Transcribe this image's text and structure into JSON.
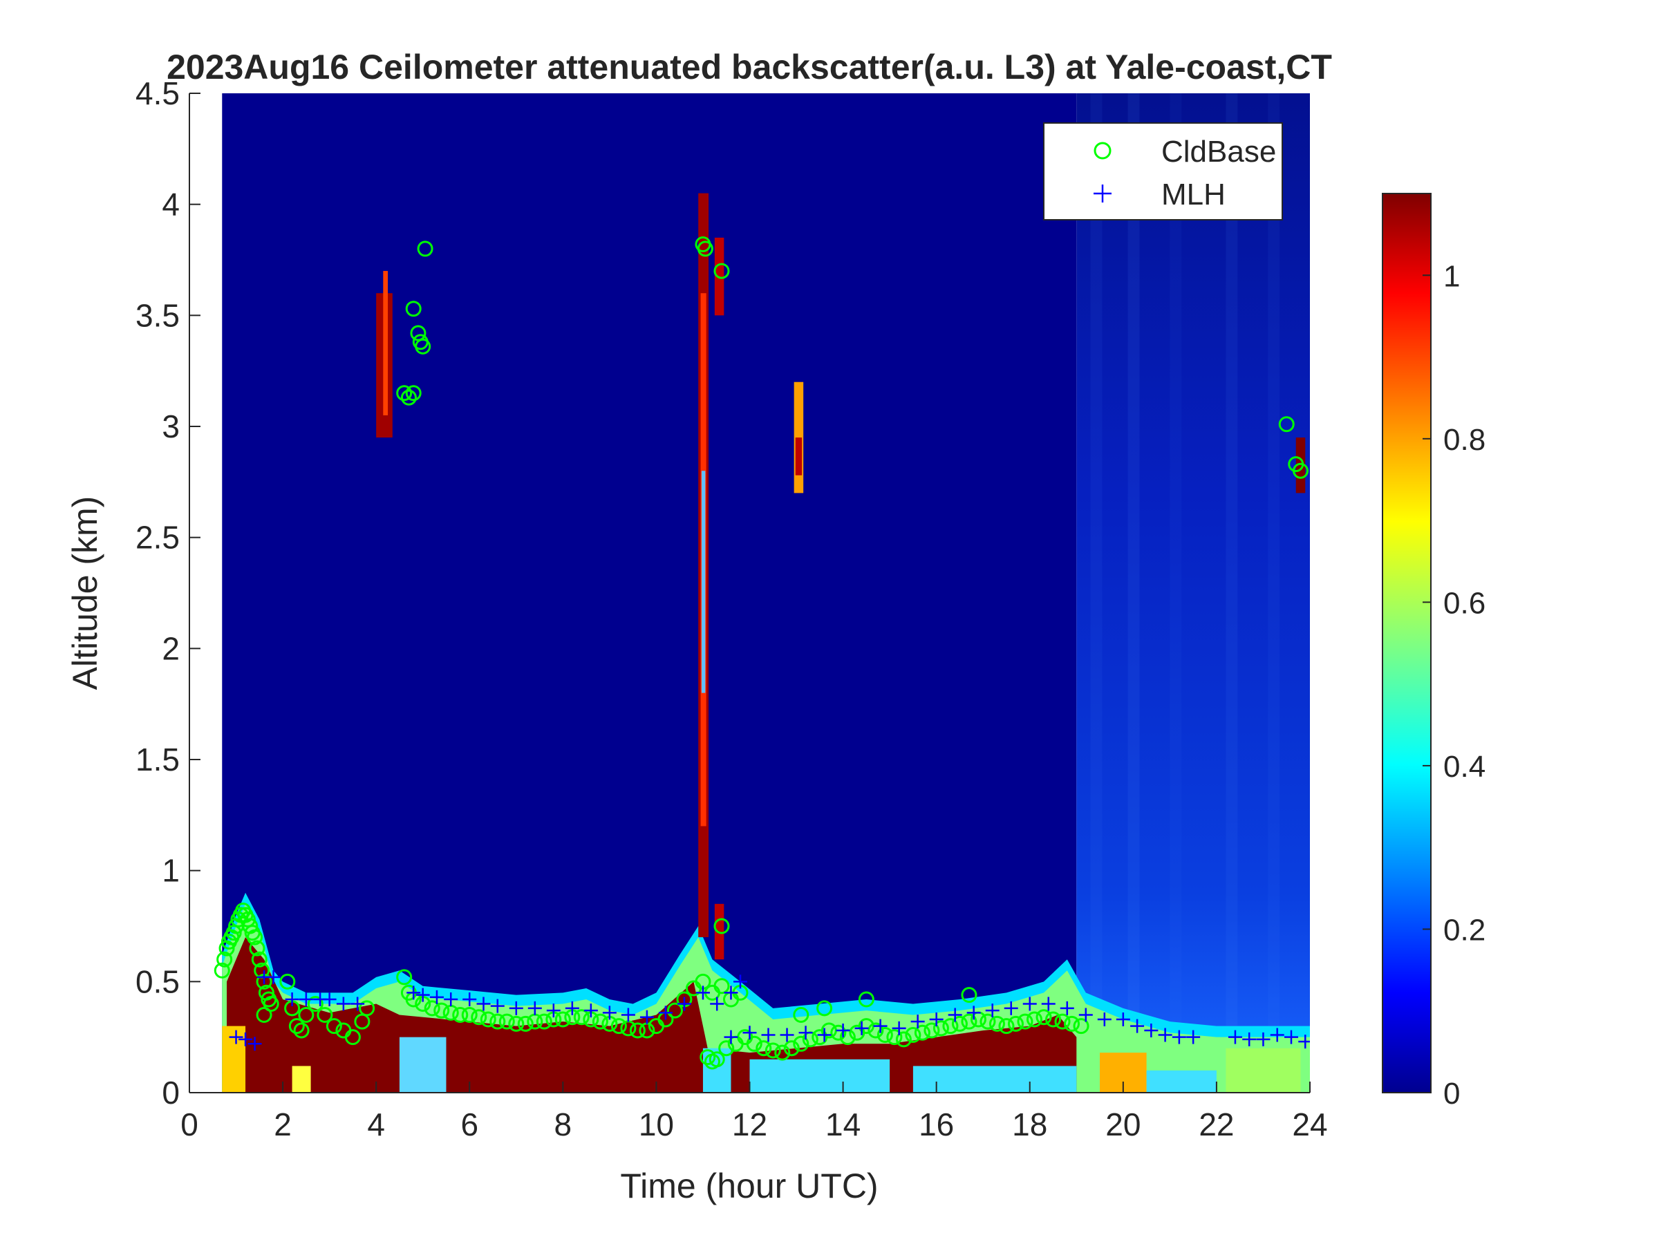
{
  "chart_data": {
    "type": "heatmap",
    "title": "2023Aug16 Ceilometer attenuated backscatter(a.u. L3) at Yale-coast,CT",
    "xlabel": "Time (hour UTC)",
    "ylabel": "Altitude (km)",
    "xlim": [
      0,
      24
    ],
    "ylim": [
      0,
      4.5
    ],
    "x_ticks": [
      0,
      2,
      4,
      6,
      8,
      10,
      12,
      14,
      16,
      18,
      20,
      22,
      24
    ],
    "y_ticks": [
      0,
      0.5,
      1,
      1.5,
      2,
      2.5,
      3,
      3.5,
      4,
      4.5
    ],
    "x_tick_labels": [
      "0",
      "2",
      "4",
      "6",
      "8",
      "10",
      "12",
      "14",
      "16",
      "18",
      "20",
      "22",
      "24"
    ],
    "y_tick_labels": [
      "0",
      "0.5",
      "1",
      "1.5",
      "2",
      "2.5",
      "3",
      "3.5",
      "4",
      "4.5"
    ],
    "data_time_range": [
      0.7,
      24
    ],
    "colorbar": {
      "colormap": "jet",
      "clim": [
        0,
        1.1
      ],
      "ticks": [
        0,
        0.2,
        0.4,
        0.6,
        0.8,
        1
      ],
      "tick_labels": [
        "0",
        "0.2",
        "0.4",
        "0.6",
        "0.8",
        "1"
      ]
    },
    "legend": {
      "placement": "top-right",
      "entries": [
        {
          "label": "CldBase",
          "marker": "circle",
          "color": "#00ff00"
        },
        {
          "label": "MLH",
          "marker": "plus",
          "color": "#0000ff"
        }
      ]
    },
    "series": [
      {
        "name": "CldBase",
        "marker": "circle",
        "color": "#00ff00",
        "points": [
          [
            0.7,
            0.55
          ],
          [
            0.75,
            0.6
          ],
          [
            0.8,
            0.65
          ],
          [
            0.85,
            0.68
          ],
          [
            0.9,
            0.7
          ],
          [
            0.95,
            0.72
          ],
          [
            1.0,
            0.75
          ],
          [
            1.05,
            0.78
          ],
          [
            1.1,
            0.8
          ],
          [
            1.15,
            0.82
          ],
          [
            1.2,
            0.8
          ],
          [
            1.25,
            0.78
          ],
          [
            1.3,
            0.75
          ],
          [
            1.35,
            0.72
          ],
          [
            1.4,
            0.7
          ],
          [
            1.45,
            0.65
          ],
          [
            1.5,
            0.6
          ],
          [
            1.55,
            0.55
          ],
          [
            1.6,
            0.5
          ],
          [
            1.65,
            0.45
          ],
          [
            1.7,
            0.42
          ],
          [
            1.75,
            0.4
          ],
          [
            1.6,
            0.35
          ],
          [
            2.1,
            0.5
          ],
          [
            2.2,
            0.38
          ],
          [
            2.3,
            0.3
          ],
          [
            2.4,
            0.28
          ],
          [
            2.5,
            0.35
          ],
          [
            2.7,
            0.4
          ],
          [
            2.9,
            0.35
          ],
          [
            3.1,
            0.3
          ],
          [
            3.3,
            0.28
          ],
          [
            3.5,
            0.25
          ],
          [
            3.7,
            0.32
          ],
          [
            3.8,
            0.38
          ],
          [
            4.6,
            0.52
          ],
          [
            4.7,
            0.45
          ],
          [
            4.8,
            0.42
          ],
          [
            5.0,
            0.4
          ],
          [
            5.2,
            0.38
          ],
          [
            5.4,
            0.37
          ],
          [
            5.6,
            0.36
          ],
          [
            5.8,
            0.35
          ],
          [
            6.0,
            0.35
          ],
          [
            6.2,
            0.34
          ],
          [
            6.4,
            0.33
          ],
          [
            6.6,
            0.32
          ],
          [
            6.8,
            0.32
          ],
          [
            7.0,
            0.31
          ],
          [
            7.2,
            0.31
          ],
          [
            7.4,
            0.32
          ],
          [
            7.6,
            0.32
          ],
          [
            7.8,
            0.33
          ],
          [
            8.0,
            0.33
          ],
          [
            8.2,
            0.34
          ],
          [
            8.4,
            0.34
          ],
          [
            8.6,
            0.33
          ],
          [
            8.8,
            0.32
          ],
          [
            9.0,
            0.31
          ],
          [
            9.2,
            0.3
          ],
          [
            9.4,
            0.29
          ],
          [
            9.6,
            0.28
          ],
          [
            9.8,
            0.28
          ],
          [
            10.0,
            0.3
          ],
          [
            10.2,
            0.33
          ],
          [
            10.4,
            0.37
          ],
          [
            10.6,
            0.42
          ],
          [
            10.8,
            0.47
          ],
          [
            11.0,
            0.5
          ],
          [
            11.2,
            0.45
          ],
          [
            11.4,
            0.48
          ],
          [
            11.6,
            0.42
          ],
          [
            11.8,
            0.45
          ],
          [
            11.1,
            0.16
          ],
          [
            11.2,
            0.14
          ],
          [
            11.3,
            0.15
          ],
          [
            11.5,
            0.2
          ],
          [
            11.7,
            0.22
          ],
          [
            11.9,
            0.25
          ],
          [
            12.1,
            0.22
          ],
          [
            12.3,
            0.2
          ],
          [
            12.5,
            0.19
          ],
          [
            12.7,
            0.18
          ],
          [
            12.9,
            0.2
          ],
          [
            13.1,
            0.22
          ],
          [
            13.3,
            0.24
          ],
          [
            13.5,
            0.25
          ],
          [
            13.7,
            0.28
          ],
          [
            13.9,
            0.27
          ],
          [
            14.1,
            0.25
          ],
          [
            14.3,
            0.27
          ],
          [
            14.5,
            0.3
          ],
          [
            14.7,
            0.28
          ],
          [
            14.9,
            0.26
          ],
          [
            15.1,
            0.25
          ],
          [
            15.3,
            0.24
          ],
          [
            15.5,
            0.26
          ],
          [
            15.7,
            0.27
          ],
          [
            15.9,
            0.28
          ],
          [
            16.1,
            0.29
          ],
          [
            16.3,
            0.3
          ],
          [
            16.5,
            0.31
          ],
          [
            16.7,
            0.32
          ],
          [
            16.9,
            0.33
          ],
          [
            17.1,
            0.32
          ],
          [
            17.3,
            0.31
          ],
          [
            17.5,
            0.3
          ],
          [
            17.7,
            0.31
          ],
          [
            17.9,
            0.32
          ],
          [
            18.1,
            0.33
          ],
          [
            18.3,
            0.34
          ],
          [
            18.5,
            0.33
          ],
          [
            18.7,
            0.32
          ],
          [
            18.9,
            0.31
          ],
          [
            19.1,
            0.3
          ],
          [
            14.5,
            0.42
          ],
          [
            16.7,
            0.44
          ],
          [
            13.1,
            0.35
          ],
          [
            13.6,
            0.38
          ],
          [
            4.6,
            3.15
          ],
          [
            4.7,
            3.13
          ],
          [
            4.8,
            3.15
          ],
          [
            4.8,
            3.53
          ],
          [
            4.9,
            3.42
          ],
          [
            4.95,
            3.38
          ],
          [
            5.0,
            3.36
          ],
          [
            5.05,
            3.8
          ],
          [
            11.0,
            3.82
          ],
          [
            11.05,
            3.8
          ],
          [
            11.4,
            3.7
          ],
          [
            11.4,
            0.75
          ],
          [
            23.5,
            3.01
          ],
          [
            23.7,
            2.83
          ],
          [
            23.8,
            2.8
          ]
        ]
      },
      {
        "name": "MLH",
        "marker": "plus",
        "color": "#0000ff",
        "points": [
          [
            1.0,
            0.25
          ],
          [
            1.2,
            0.24
          ],
          [
            1.4,
            0.22
          ],
          [
            1.6,
            0.52
          ],
          [
            1.8,
            0.52
          ],
          [
            2.2,
            0.42
          ],
          [
            2.5,
            0.42
          ],
          [
            2.8,
            0.42
          ],
          [
            3.0,
            0.42
          ],
          [
            3.3,
            0.4
          ],
          [
            3.6,
            0.4
          ],
          [
            4.8,
            0.45
          ],
          [
            5.0,
            0.44
          ],
          [
            5.3,
            0.43
          ],
          [
            5.6,
            0.42
          ],
          [
            6.0,
            0.42
          ],
          [
            6.3,
            0.4
          ],
          [
            6.6,
            0.39
          ],
          [
            7.0,
            0.38
          ],
          [
            7.4,
            0.38
          ],
          [
            7.8,
            0.37
          ],
          [
            8.2,
            0.38
          ],
          [
            8.6,
            0.37
          ],
          [
            9.0,
            0.36
          ],
          [
            9.4,
            0.35
          ],
          [
            9.8,
            0.34
          ],
          [
            10.2,
            0.36
          ],
          [
            10.6,
            0.4
          ],
          [
            11.0,
            0.45
          ],
          [
            11.3,
            0.4
          ],
          [
            11.6,
            0.45
          ],
          [
            11.8,
            0.5
          ],
          [
            11.6,
            0.25
          ],
          [
            12.0,
            0.27
          ],
          [
            12.4,
            0.26
          ],
          [
            12.8,
            0.26
          ],
          [
            13.2,
            0.27
          ],
          [
            13.6,
            0.26
          ],
          [
            14.0,
            0.28
          ],
          [
            14.4,
            0.29
          ],
          [
            14.8,
            0.3
          ],
          [
            15.2,
            0.29
          ],
          [
            15.6,
            0.32
          ],
          [
            16.0,
            0.33
          ],
          [
            16.4,
            0.35
          ],
          [
            16.8,
            0.36
          ],
          [
            17.2,
            0.37
          ],
          [
            17.6,
            0.38
          ],
          [
            18.0,
            0.4
          ],
          [
            18.4,
            0.4
          ],
          [
            18.8,
            0.38
          ],
          [
            19.2,
            0.35
          ],
          [
            19.6,
            0.33
          ],
          [
            20.0,
            0.33
          ],
          [
            20.3,
            0.3
          ],
          [
            20.6,
            0.28
          ],
          [
            20.9,
            0.26
          ],
          [
            21.2,
            0.25
          ],
          [
            21.5,
            0.25
          ],
          [
            22.4,
            0.25
          ],
          [
            22.7,
            0.24
          ],
          [
            23.0,
            0.24
          ],
          [
            23.3,
            0.26
          ],
          [
            23.6,
            0.25
          ],
          [
            23.9,
            0.23
          ]
        ]
      }
    ]
  }
}
